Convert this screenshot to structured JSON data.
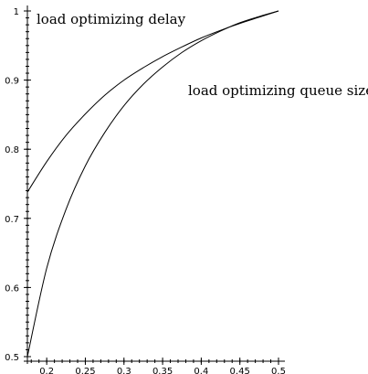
{
  "chart_data": {
    "type": "line",
    "title": "",
    "xlabel": "",
    "ylabel": "",
    "xlim": [
      0.175,
      0.5
    ],
    "ylim": [
      0.5,
      1.0
    ],
    "grid": false,
    "x_ticks": [
      0.2,
      0.25,
      0.3,
      0.35,
      0.4,
      0.45,
      0.5
    ],
    "x_tick_labels": [
      "0.2",
      "0.25",
      "0.3",
      "0.35",
      "0.4",
      "0.45",
      "0.5"
    ],
    "y_ticks": [
      0.5,
      0.6,
      0.7,
      0.8,
      0.9,
      1.0
    ],
    "y_tick_labels": [
      "0.5",
      "0.6",
      "0.7",
      "0.8",
      "0.9",
      "1"
    ],
    "series": [
      {
        "name": "load optimizing delay",
        "x": [
          0.175,
          0.2,
          0.225,
          0.25,
          0.275,
          0.3,
          0.325,
          0.35,
          0.375,
          0.4,
          0.425,
          0.45,
          0.475,
          0.5
        ],
        "y": [
          0.738,
          0.782,
          0.82,
          0.851,
          0.878,
          0.9,
          0.918,
          0.934,
          0.948,
          0.961,
          0.972,
          0.982,
          0.991,
          1.0
        ]
      },
      {
        "name": "load optimizing queue size",
        "x": [
          0.175,
          0.2,
          0.225,
          0.25,
          0.275,
          0.3,
          0.325,
          0.35,
          0.375,
          0.4,
          0.425,
          0.45,
          0.475,
          0.5
        ],
        "y": [
          0.5,
          0.628,
          0.713,
          0.776,
          0.824,
          0.863,
          0.894,
          0.919,
          0.94,
          0.957,
          0.971,
          0.983,
          0.992,
          1.0
        ]
      }
    ],
    "annotations": [
      {
        "text": "load optimizing delay",
        "series": 0
      },
      {
        "text": "load optimizing queue size",
        "series": 1
      }
    ]
  }
}
